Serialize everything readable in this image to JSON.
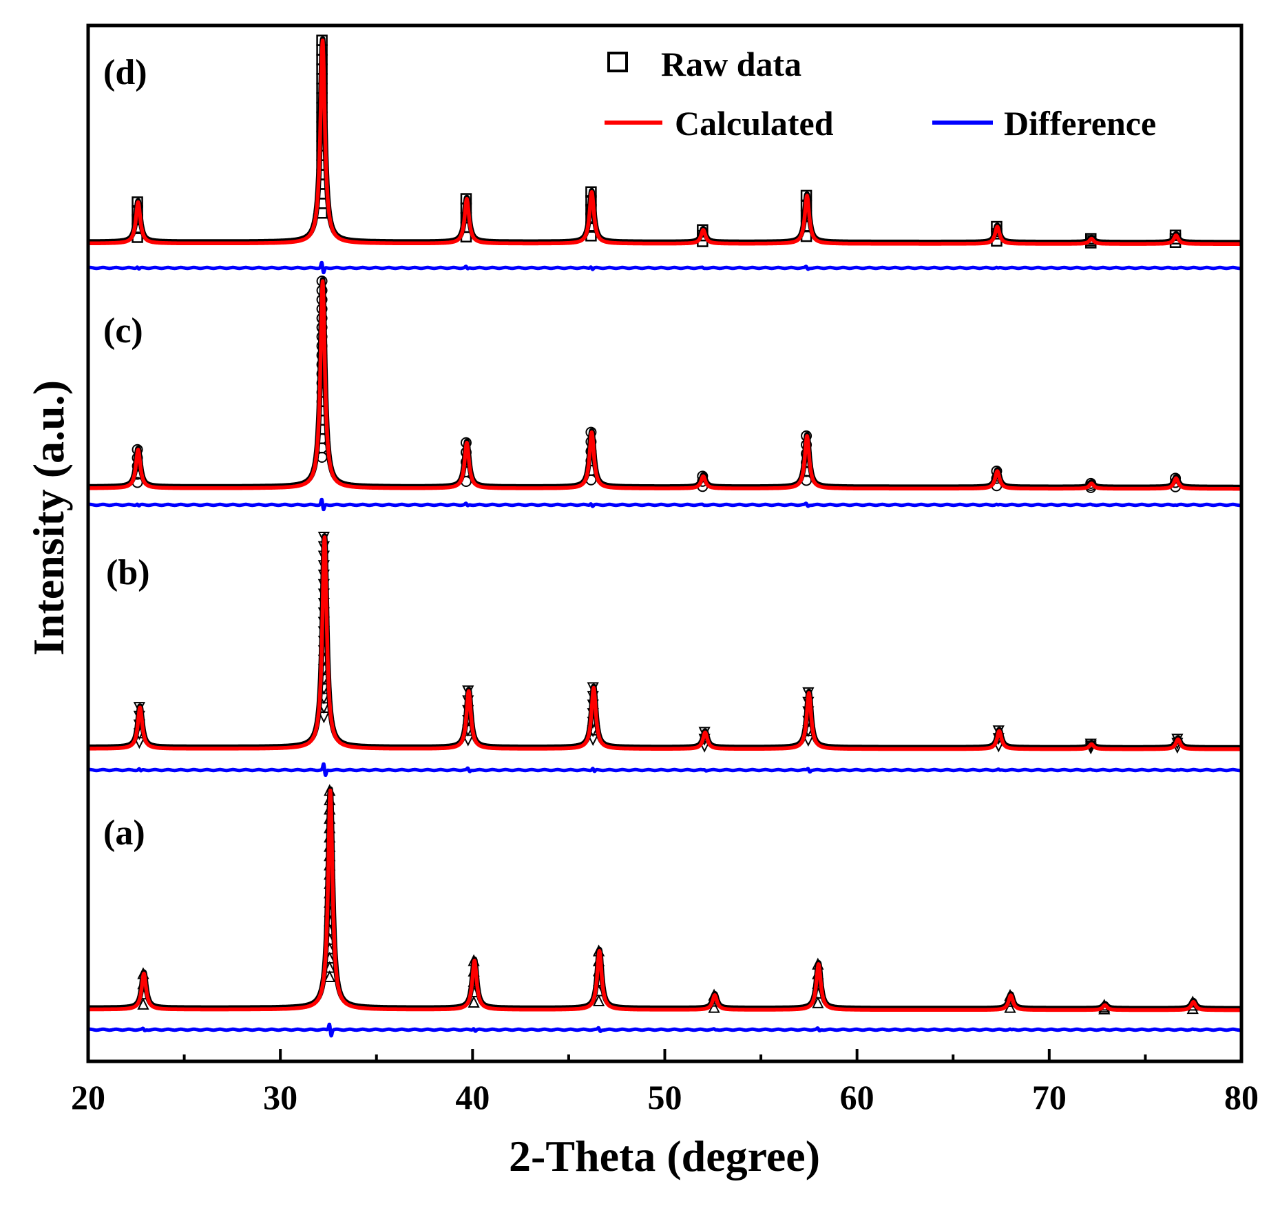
{
  "chart_data": {
    "type": "line",
    "title": "",
    "xlabel": "2-Theta (degree)",
    "ylabel": "Intensity (a.u.)",
    "xlim": [
      20,
      80
    ],
    "xticks": [
      "20",
      "30",
      "40",
      "50",
      "60",
      "70",
      "80"
    ],
    "yticks": [],
    "grid": false,
    "legend": {
      "placement": "top-right",
      "entries": [
        "Raw data",
        "Calculated",
        "Difference"
      ]
    },
    "colors": {
      "raw": "#000000",
      "calculated": "#ff0000",
      "difference": "#0000ff",
      "axis": "#000000"
    },
    "panels": [
      {
        "label": "(d)",
        "marker": "square",
        "baseline": 0.7,
        "background_slope": 0.15,
        "peaks": [
          {
            "x": 22.6,
            "height": 12.0
          },
          {
            "x": 32.2,
            "height": 59.0
          },
          {
            "x": 39.7,
            "height": 13.0
          },
          {
            "x": 46.2,
            "height": 15.0
          },
          {
            "x": 52.0,
            "height": 4.0
          },
          {
            "x": 57.4,
            "height": 14.0
          },
          {
            "x": 67.3,
            "height": 5.0
          },
          {
            "x": 72.2,
            "height": 1.5
          },
          {
            "x": 76.6,
            "height": 2.5
          }
        ],
        "difference_offset": -7.0
      },
      {
        "label": "(c)",
        "marker": "circle",
        "baseline": 0.6,
        "background_slope": 0.15,
        "peaks": [
          {
            "x": 22.6,
            "height": 11.0
          },
          {
            "x": 32.2,
            "height": 59.0
          },
          {
            "x": 39.7,
            "height": 13.0
          },
          {
            "x": 46.2,
            "height": 16.0
          },
          {
            "x": 52.0,
            "height": 3.5
          },
          {
            "x": 57.4,
            "height": 15.0
          },
          {
            "x": 67.3,
            "height": 5.0
          },
          {
            "x": 72.2,
            "height": 1.5
          },
          {
            "x": 76.6,
            "height": 3.0
          }
        ],
        "difference_offset": -4.0
      },
      {
        "label": "(b)",
        "marker": "triangle-down",
        "baseline": 0.6,
        "background_slope": 0.15,
        "peaks": [
          {
            "x": 22.7,
            "height": 12.5
          },
          {
            "x": 32.3,
            "height": 64.0
          },
          {
            "x": 39.8,
            "height": 17.5
          },
          {
            "x": 46.3,
            "height": 18.5
          },
          {
            "x": 52.1,
            "height": 5.0
          },
          {
            "x": 57.5,
            "height": 17.0
          },
          {
            "x": 67.4,
            "height": 5.5
          },
          {
            "x": 72.2,
            "height": 1.5
          },
          {
            "x": 76.7,
            "height": 3.0
          }
        ],
        "difference_offset": -6.0
      },
      {
        "label": "(a)",
        "marker": "triangle-up",
        "baseline": 0.9,
        "background_slope": 0.2,
        "peaks": [
          {
            "x": 22.9,
            "height": 11.0
          },
          {
            "x": 32.6,
            "height": 67.0
          },
          {
            "x": 40.1,
            "height": 15.0
          },
          {
            "x": 46.6,
            "height": 18.0
          },
          {
            "x": 52.6,
            "height": 4.5
          },
          {
            "x": 58.0,
            "height": 14.0
          },
          {
            "x": 68.0,
            "height": 4.5
          },
          {
            "x": 72.9,
            "height": 1.5
          },
          {
            "x": 77.5,
            "height": 2.5
          }
        ],
        "difference_offset": -5.0
      }
    ]
  }
}
